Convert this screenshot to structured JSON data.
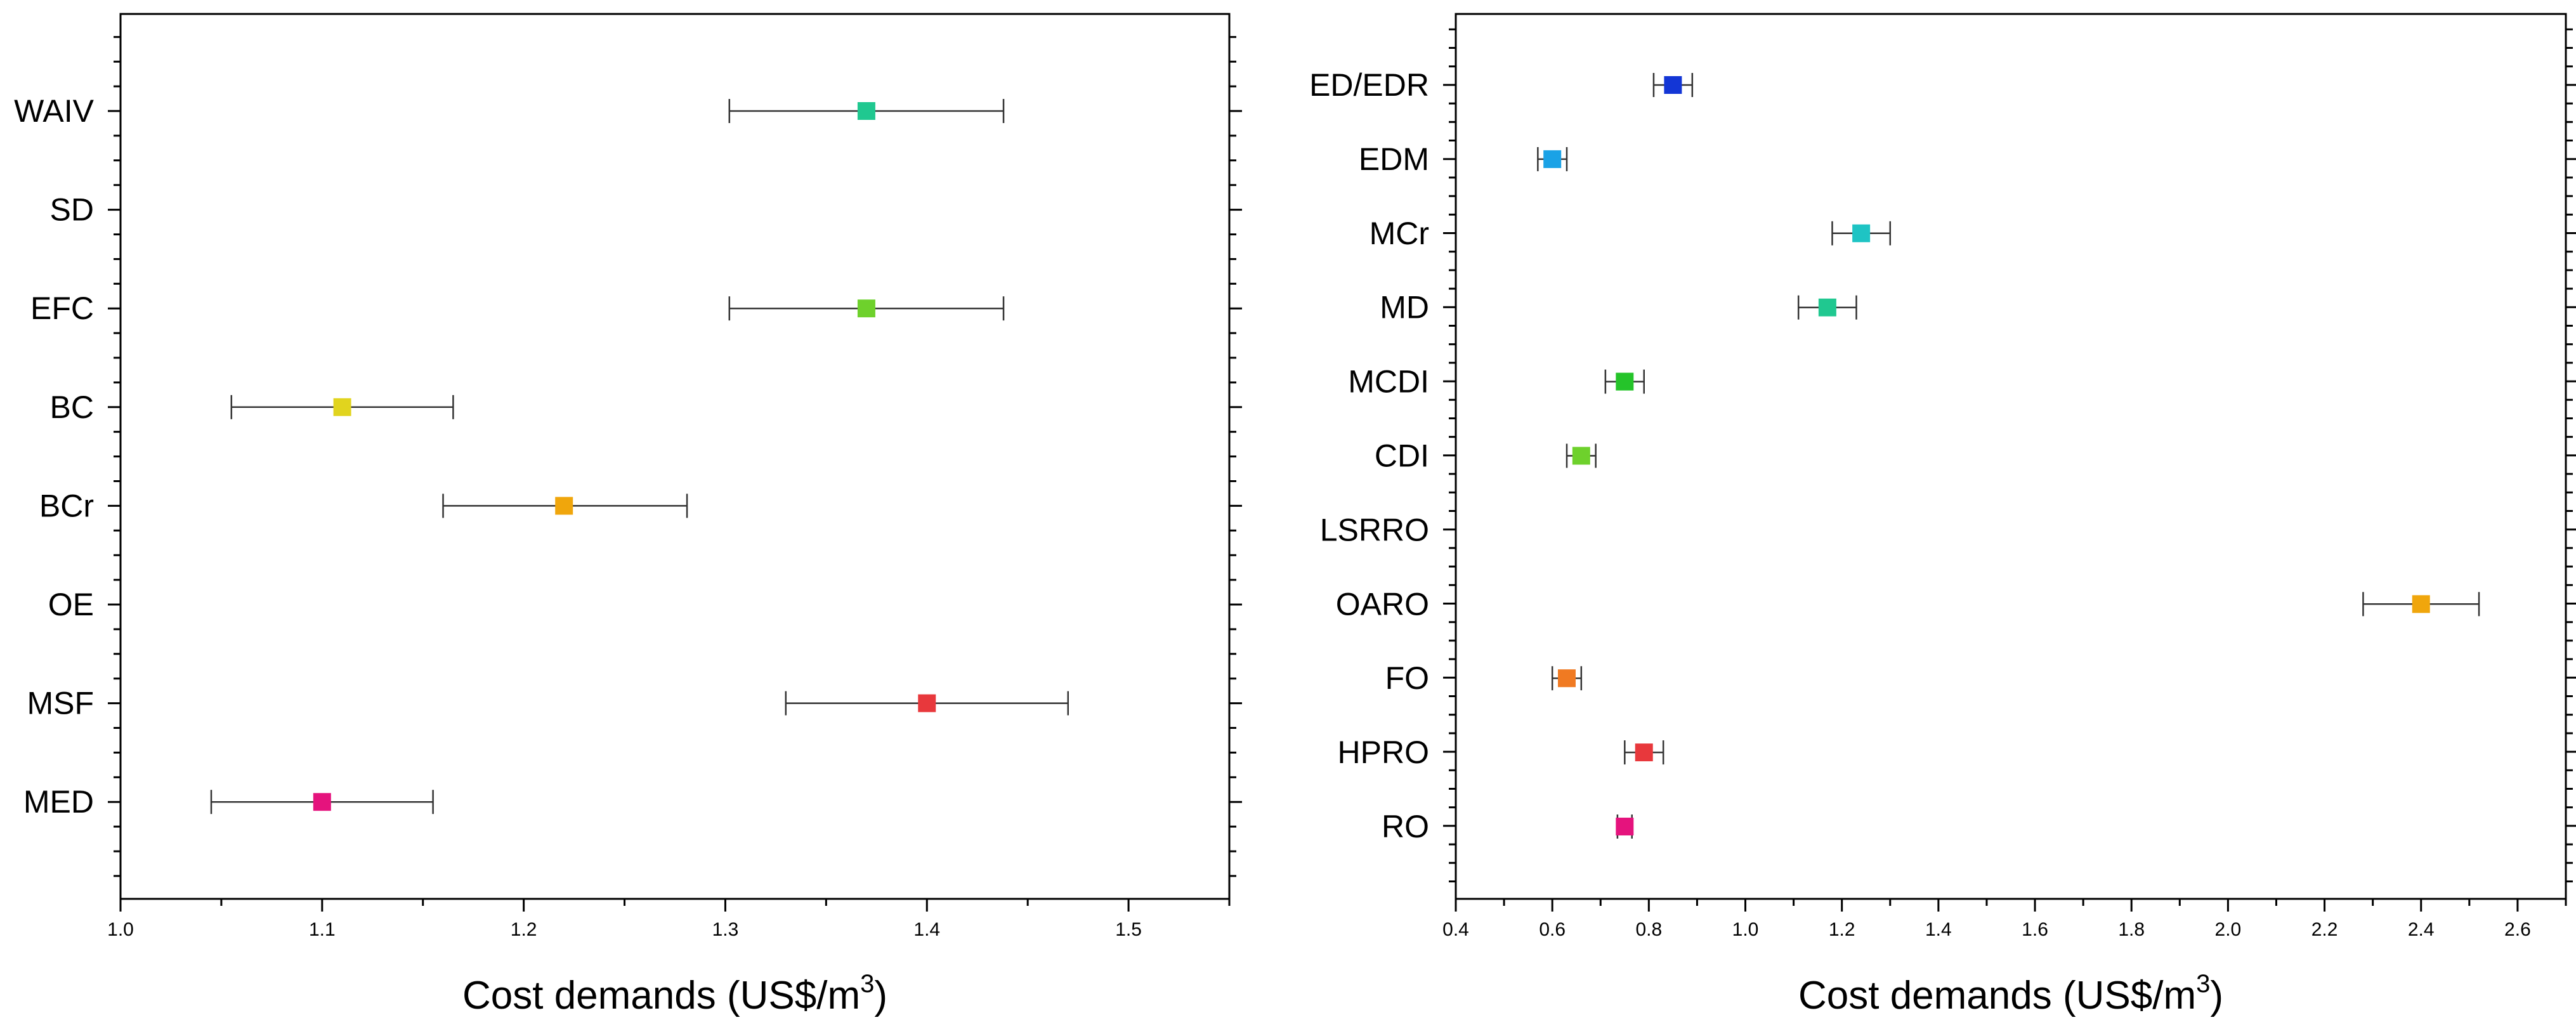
{
  "chart_data": [
    {
      "type": "scatter",
      "title": "",
      "xlabel": "Cost demands (US$/m3)",
      "xlabel_parts": {
        "main": "Cost demands (US$/m",
        "superscript": "3",
        "close": ")"
      },
      "ylabel": "",
      "xlim": [
        1.0,
        1.55
      ],
      "x_ticks": [
        1.0,
        1.1,
        1.2,
        1.3,
        1.4,
        1.5
      ],
      "x_tick_labels": [
        "1.0",
        "1.1",
        "1.2",
        "1.3",
        "1.4",
        "1.5"
      ],
      "x_minor_step": 0.05,
      "categories": [
        "WAIV",
        "SD",
        "EFC",
        "BC",
        "BCr",
        "OE",
        "MSF",
        "MED"
      ],
      "points": [
        {
          "category": "WAIV",
          "value": 1.37,
          "err_low": 1.302,
          "err_high": 1.438,
          "color": "#20C890"
        },
        {
          "category": "SD",
          "value": null,
          "err_low": null,
          "err_high": null,
          "color": ""
        },
        {
          "category": "EFC",
          "value": 1.37,
          "err_low": 1.302,
          "err_high": 1.438,
          "color": "#6ED12C"
        },
        {
          "category": "BC",
          "value": 1.11,
          "err_low": 1.055,
          "err_high": 1.165,
          "color": "#E1D41E"
        },
        {
          "category": "BCr",
          "value": 1.22,
          "err_low": 1.16,
          "err_high": 1.281,
          "color": "#F0A60C"
        },
        {
          "category": "OE",
          "value": null,
          "err_low": null,
          "err_high": null,
          "color": ""
        },
        {
          "category": "MSF",
          "value": 1.4,
          "err_low": 1.33,
          "err_high": 1.47,
          "color": "#E8383C"
        },
        {
          "category": "MED",
          "value": 1.1,
          "err_low": 1.045,
          "err_high": 1.155,
          "color": "#E5137D"
        }
      ]
    },
    {
      "type": "scatter",
      "title": "",
      "xlabel": "Cost demands (US$/m3)",
      "xlabel_parts": {
        "main": "Cost demands (US$/m",
        "superscript": "3",
        "close": ")"
      },
      "ylabel": "",
      "xlim": [
        0.4,
        2.7
      ],
      "x_ticks": [
        0.4,
        0.6,
        0.8,
        1.0,
        1.2,
        1.4,
        1.6,
        1.8,
        2.0,
        2.2,
        2.4,
        2.6
      ],
      "x_tick_labels": [
        "0.4",
        "0.6",
        "0.8",
        "1.0",
        "1.2",
        "1.4",
        "1.6",
        "1.8",
        "2.0",
        "2.2",
        "2.4",
        "2.6"
      ],
      "x_minor_step": 0.1,
      "categories": [
        "ED/EDR",
        "EDM",
        "MCr",
        "MD",
        "MCDI",
        "CDI",
        "LSRRO",
        "OARO",
        "FO",
        "HPRO",
        "RO"
      ],
      "points": [
        {
          "category": "ED/EDR",
          "value": 0.85,
          "err_low": 0.81,
          "err_high": 0.89,
          "color": "#1336D6"
        },
        {
          "category": "EDM",
          "value": 0.6,
          "err_low": 0.57,
          "err_high": 0.63,
          "color": "#1AA2E6"
        },
        {
          "category": "MCr",
          "value": 1.24,
          "err_low": 1.18,
          "err_high": 1.3,
          "color": "#1EC4C4"
        },
        {
          "category": "MD",
          "value": 1.17,
          "err_low": 1.11,
          "err_high": 1.23,
          "color": "#20C890"
        },
        {
          "category": "MCDI",
          "value": 0.75,
          "err_low": 0.71,
          "err_high": 0.79,
          "color": "#25C42A"
        },
        {
          "category": "CDI",
          "value": 0.66,
          "err_low": 0.63,
          "err_high": 0.69,
          "color": "#6ED12C"
        },
        {
          "category": "LSRRO",
          "value": null,
          "err_low": null,
          "err_high": null,
          "color": ""
        },
        {
          "category": "OARO",
          "value": 2.4,
          "err_low": 2.28,
          "err_high": 2.52,
          "color": "#F0A60C"
        },
        {
          "category": "FO",
          "value": 0.63,
          "err_low": 0.6,
          "err_high": 0.66,
          "color": "#F07A22"
        },
        {
          "category": "HPRO",
          "value": 0.79,
          "err_low": 0.75,
          "err_high": 0.83,
          "color": "#E8383C"
        },
        {
          "category": "RO",
          "value": 0.75,
          "err_low": 0.735,
          "err_high": 0.765,
          "color": "#E5137D"
        }
      ]
    }
  ]
}
